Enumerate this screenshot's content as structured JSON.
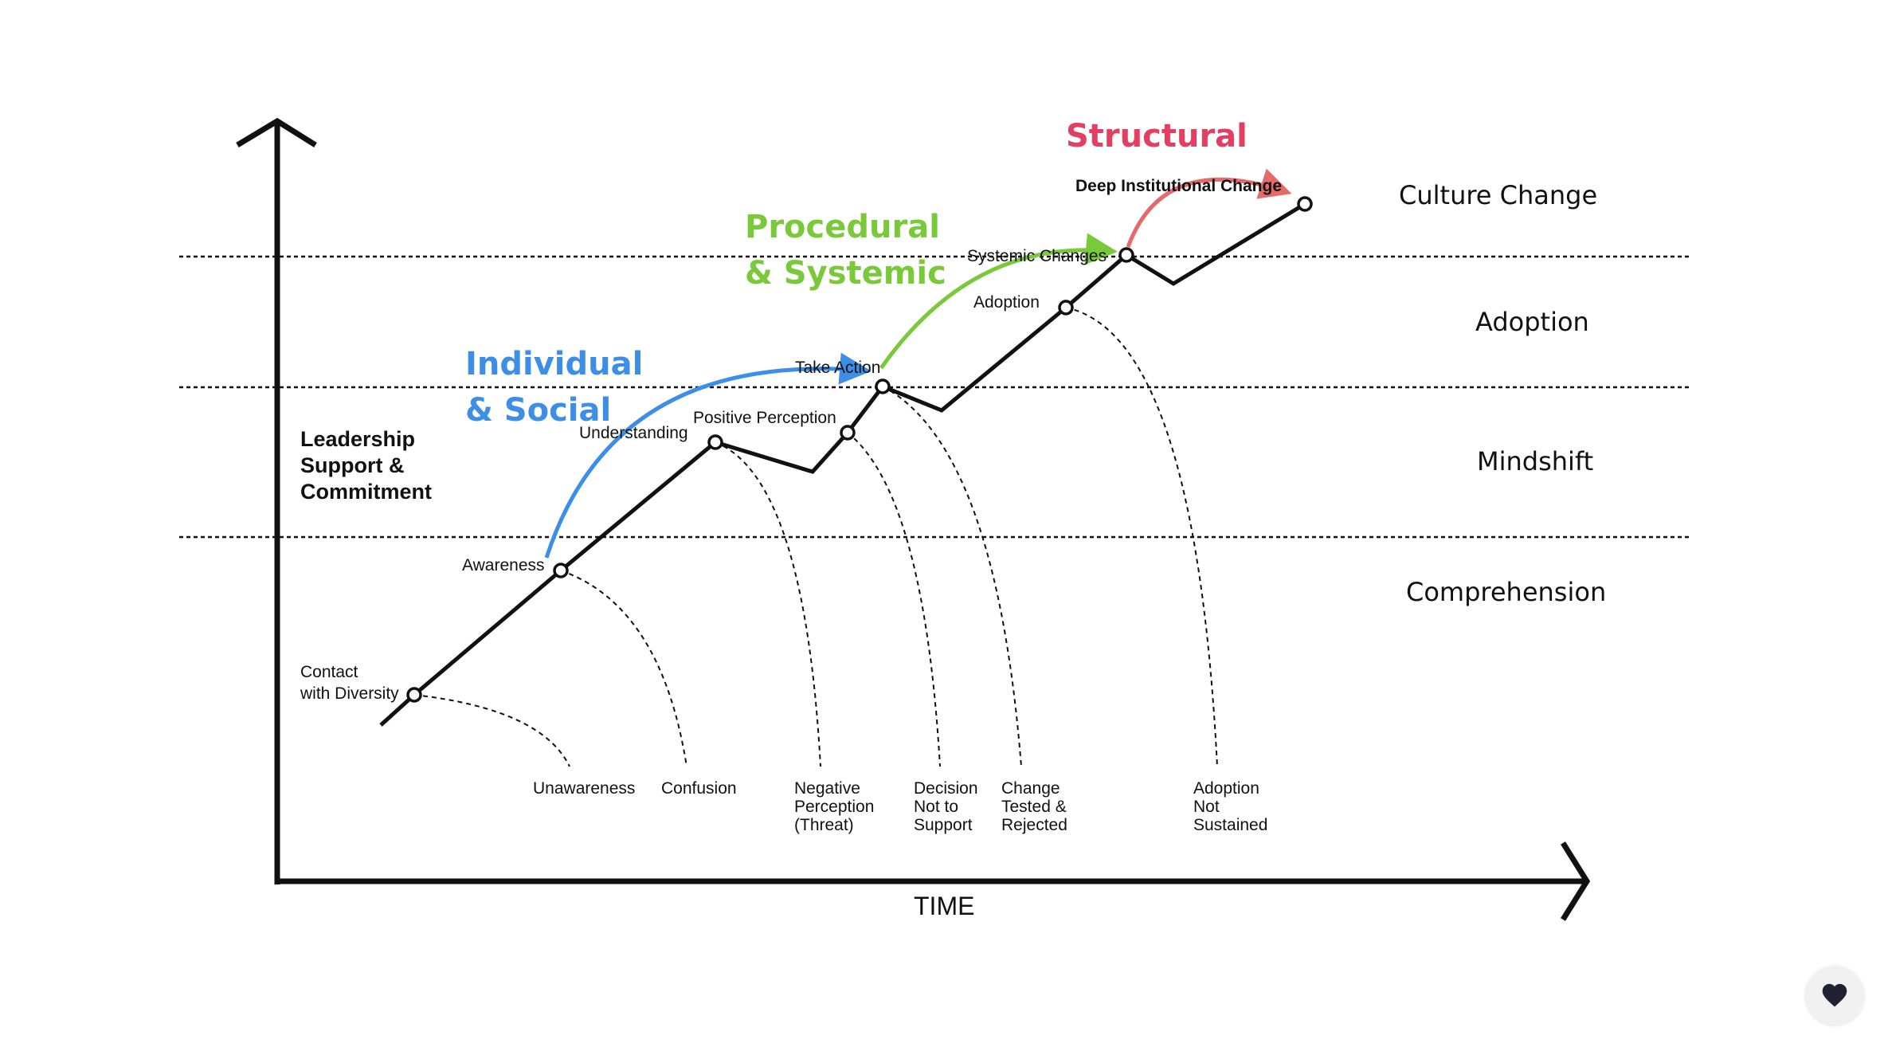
{
  "levels": {
    "culture_change": "Culture Change",
    "adoption": "Adoption",
    "mindshift": "Mindshift",
    "comprehension": "Comprehension"
  },
  "axis": {
    "x_label": "TIME"
  },
  "side_label": [
    "Leadership",
    "Support &",
    "Commitment"
  ],
  "categories": {
    "individual": {
      "lines": [
        "Individual",
        "& Social"
      ],
      "color": "#3d8fe6"
    },
    "procedural": {
      "lines": [
        "Procedural",
        "& Systemic"
      ],
      "color": "#7ac93a"
    },
    "structural": {
      "lines": [
        "Structural"
      ],
      "color": "#e23f62"
    }
  },
  "stages": {
    "contact": [
      "Contact",
      "with Diversity"
    ],
    "awareness": "Awareness",
    "understanding": "Understanding",
    "positive_perception": "Positive Perception",
    "take_action": "Take Action",
    "adoption": "Adoption",
    "systemic_changes": "Systemic Changes",
    "deep_change": "Deep Institutional Change"
  },
  "outcomes": {
    "unawareness": [
      "Unawareness"
    ],
    "confusion": [
      "Confusion"
    ],
    "negative_perception": [
      "Negative",
      "Perception",
      "(Threat)"
    ],
    "decision_not_support": [
      "Decision",
      "Not to",
      "Support"
    ],
    "change_rejected": [
      "Change",
      "Tested &",
      "Rejected"
    ],
    "adoption_not_sustained": [
      "Adoption",
      "Not",
      "Sustained"
    ]
  },
  "colors": {
    "line": "#111111",
    "background": "#ffffff"
  },
  "icons": {
    "favorite": "heart-icon"
  }
}
